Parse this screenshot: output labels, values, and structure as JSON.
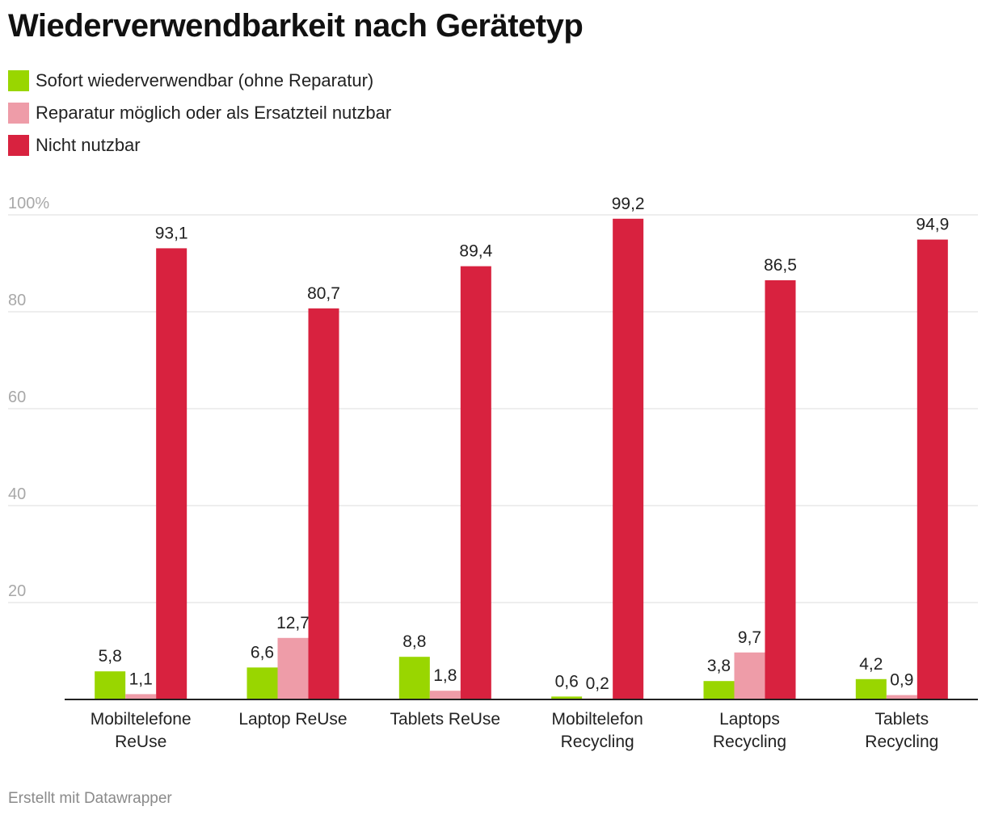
{
  "title": "Wiederverwendbarkeit nach Gerätetyp",
  "footer": "Erstellt mit Datawrapper",
  "chart_data": {
    "type": "bar",
    "title": "Wiederverwendbarkeit nach Gerätetyp",
    "xlabel": "",
    "ylabel": "",
    "ylim": [
      0,
      100
    ],
    "y_ticks": [
      "20",
      "40",
      "60",
      "80",
      "100%"
    ],
    "y_tick_values": [
      20,
      40,
      60,
      80,
      100
    ],
    "grid": true,
    "legend_position": "top-left",
    "categories": [
      [
        "Mobiltelefone",
        "ReUse"
      ],
      [
        "Laptop ReUse"
      ],
      [
        "Tablets ReUse"
      ],
      [
        "Mobiltelefon",
        "Recycling"
      ],
      [
        "Laptops",
        "Recycling"
      ],
      [
        "Tablets",
        "Recycling"
      ]
    ],
    "series": [
      {
        "name": "Sofort wiederverwendbar (ohne Reparatur)",
        "color": "#99d600",
        "values": [
          5.8,
          6.6,
          8.8,
          0.6,
          3.8,
          4.2
        ],
        "labels": [
          "5,8",
          "6,6",
          "8,8",
          "0,6",
          "3,8",
          "4,2"
        ]
      },
      {
        "name": "Reparatur möglich oder als Ersatzteil nutzbar",
        "color": "#ee9ca8",
        "values": [
          1.1,
          12.7,
          1.8,
          0.2,
          9.7,
          0.9
        ],
        "labels": [
          "1,1",
          "12,7",
          "1,8",
          "0,2",
          "9,7",
          "0,9"
        ]
      },
      {
        "name": "Nicht nutzbar",
        "color": "#d8223f",
        "values": [
          93.1,
          80.7,
          89.4,
          99.2,
          86.5,
          94.9
        ],
        "labels": [
          "93,1",
          "80,7",
          "89,4",
          "99,2",
          "86,5",
          "94,9"
        ]
      }
    ]
  }
}
